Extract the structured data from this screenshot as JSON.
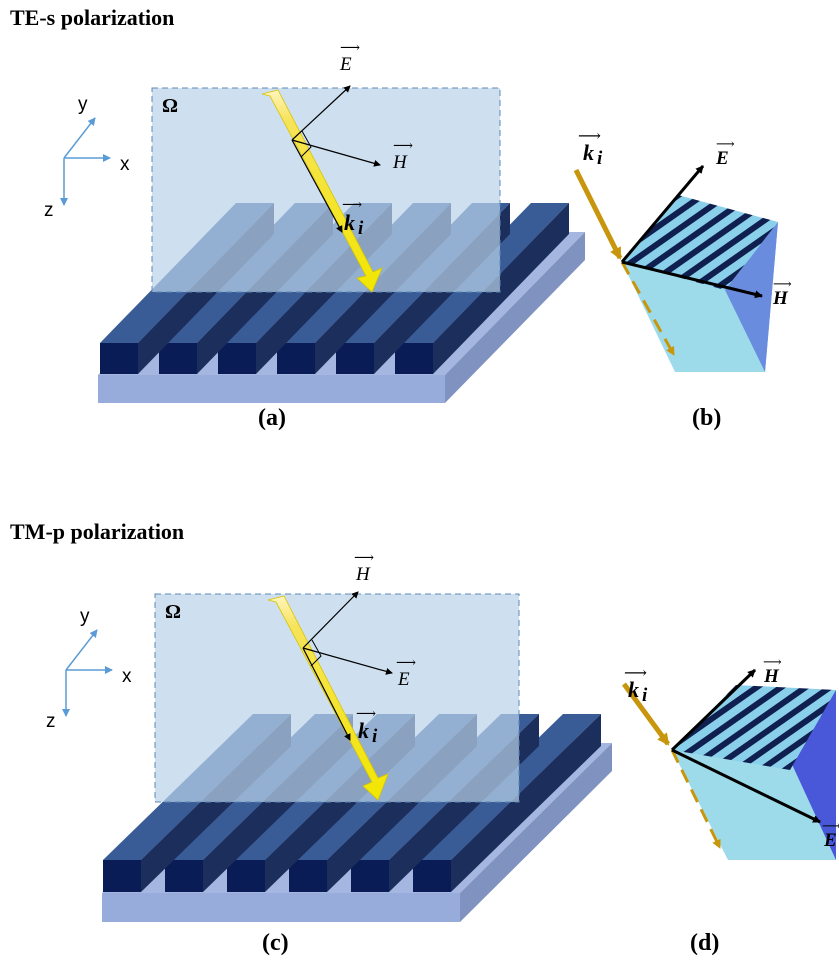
{
  "sections": {
    "te": {
      "title": "TE-s polarization"
    },
    "tm": {
      "title": "TM-p polarization"
    }
  },
  "labels": {
    "a": "(a)",
    "b": "(b)",
    "c": "(c)",
    "d": "(d)"
  },
  "axes": {
    "x": "x",
    "y": "y",
    "z": "z"
  },
  "symbols": {
    "omega": "Ω",
    "E": "E",
    "H": "H",
    "k": "k",
    "k_sub": "i"
  },
  "colors": {
    "plane": "#b9d3ea",
    "plane_border": "#5b88b4",
    "substrate_top": "#a5b7e0",
    "substrate_side": "#8092bf",
    "ridge_top": "#3a5c96",
    "ridge_side": "#1c2e5c",
    "ridge_front": "#0a1c55",
    "beam": "#f2e600",
    "wave_arrow": "#c8960c",
    "axis": "#5b9bd5",
    "prism_light": "#9edbea",
    "prism_dark": "#4858d8",
    "stripe_dark": "#0f2050",
    "stripe_light": "#8ad0ea"
  }
}
